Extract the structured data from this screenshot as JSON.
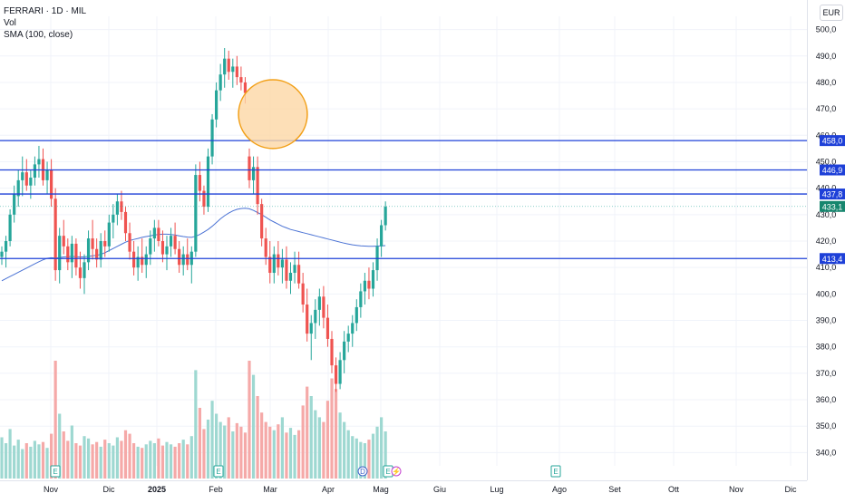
{
  "legend": {
    "symbol": "FERRARI · 1D · MIL",
    "volume": "Vol",
    "sma": "SMA (100, close)"
  },
  "currency": "EUR",
  "colors": {
    "up": "#26a69a",
    "down": "#ef5350",
    "vol_up": "#9ed8d1",
    "vol_down": "#f5a9a8",
    "sma": "#4a72d4",
    "level": "#1e40d8",
    "price_badge": "#16866e",
    "highlight_fill": "#fcd7a5",
    "highlight_stroke": "#f2a018",
    "grid": "#f0f3fa",
    "axis_text": "#131722",
    "event_earnings": "#26a69a",
    "event_dividend": "#3f62c8",
    "event_split": "#c542d0"
  },
  "chart_data": {
    "type": "candlestick",
    "ylim": [
      335,
      505
    ],
    "y_ticks": [
      "500,0",
      "490,0",
      "480,0",
      "470,0",
      "460,0",
      "450,0",
      "440,0",
      "430,0",
      "420,0",
      "410,0",
      "400,0",
      "390,0",
      "380,0",
      "370,0",
      "360,0",
      "350,0",
      "340,0"
    ],
    "y_tick_values": [
      500,
      490,
      480,
      470,
      460,
      450,
      440,
      430,
      420,
      410,
      400,
      390,
      380,
      370,
      360,
      350,
      340
    ],
    "x_labels": [
      "Nov",
      "Dic",
      "2025",
      "Feb",
      "Mar",
      "Apr",
      "Mag",
      "Giu",
      "Lug",
      "Ago",
      "Set",
      "Ott",
      "Nov",
      "Dic"
    ],
    "levels": [
      {
        "value": 458.0,
        "label": "458,0"
      },
      {
        "value": 446.9,
        "label": "446,9"
      },
      {
        "value": 437.8,
        "label": "437,8"
      },
      {
        "value": 413.4,
        "label": "413,4"
      }
    ],
    "last_price": {
      "value": 433.1,
      "label": "433,1"
    },
    "highlight": {
      "type": "circle",
      "price_center": 468,
      "price_radius": 13,
      "date": "mid-Feb 2025"
    },
    "candles": [
      {
        "o": 414,
        "h": 418,
        "l": 411,
        "c": 416
      },
      {
        "o": 416,
        "h": 422,
        "l": 410,
        "c": 420
      },
      {
        "o": 420,
        "h": 432,
        "l": 418,
        "c": 430
      },
      {
        "o": 430,
        "h": 441,
        "l": 427,
        "c": 438
      },
      {
        "o": 437,
        "h": 447,
        "l": 433,
        "c": 443
      },
      {
        "o": 443,
        "h": 452,
        "l": 437,
        "c": 446
      },
      {
        "o": 446,
        "h": 451,
        "l": 439,
        "c": 441
      },
      {
        "o": 441,
        "h": 447,
        "l": 436,
        "c": 444
      },
      {
        "o": 444,
        "h": 452,
        "l": 441,
        "c": 449
      },
      {
        "o": 449,
        "h": 456,
        "l": 444,
        "c": 451
      },
      {
        "o": 451,
        "h": 455,
        "l": 441,
        "c": 443
      },
      {
        "o": 443,
        "h": 450,
        "l": 438,
        "c": 447
      },
      {
        "o": 447,
        "h": 451,
        "l": 433,
        "c": 436
      },
      {
        "o": 436,
        "h": 440,
        "l": 405,
        "c": 409
      },
      {
        "o": 409,
        "h": 425,
        "l": 404,
        "c": 422
      },
      {
        "o": 422,
        "h": 428,
        "l": 415,
        "c": 418
      },
      {
        "o": 418,
        "h": 421,
        "l": 409,
        "c": 412
      },
      {
        "o": 412,
        "h": 422,
        "l": 406,
        "c": 419
      },
      {
        "o": 419,
        "h": 421,
        "l": 407,
        "c": 410
      },
      {
        "o": 410,
        "h": 416,
        "l": 402,
        "c": 406
      },
      {
        "o": 406,
        "h": 415,
        "l": 400,
        "c": 412
      },
      {
        "o": 412,
        "h": 424,
        "l": 409,
        "c": 421
      },
      {
        "o": 421,
        "h": 428,
        "l": 413,
        "c": 417
      },
      {
        "o": 417,
        "h": 421,
        "l": 410,
        "c": 413
      },
      {
        "o": 413,
        "h": 423,
        "l": 410,
        "c": 420
      },
      {
        "o": 420,
        "h": 424,
        "l": 414,
        "c": 418
      },
      {
        "o": 418,
        "h": 430,
        "l": 416,
        "c": 427
      },
      {
        "o": 427,
        "h": 434,
        "l": 421,
        "c": 430
      },
      {
        "o": 430,
        "h": 438,
        "l": 426,
        "c": 435
      },
      {
        "o": 435,
        "h": 439,
        "l": 428,
        "c": 431
      },
      {
        "o": 431,
        "h": 433,
        "l": 420,
        "c": 423
      },
      {
        "o": 423,
        "h": 427,
        "l": 413,
        "c": 416
      },
      {
        "o": 416,
        "h": 420,
        "l": 407,
        "c": 410
      },
      {
        "o": 410,
        "h": 418,
        "l": 405,
        "c": 414
      },
      {
        "o": 414,
        "h": 421,
        "l": 408,
        "c": 411
      },
      {
        "o": 411,
        "h": 418,
        "l": 406,
        "c": 415
      },
      {
        "o": 415,
        "h": 424,
        "l": 411,
        "c": 421
      },
      {
        "o": 421,
        "h": 428,
        "l": 416,
        "c": 425
      },
      {
        "o": 425,
        "h": 428,
        "l": 418,
        "c": 420
      },
      {
        "o": 420,
        "h": 424,
        "l": 412,
        "c": 415
      },
      {
        "o": 415,
        "h": 422,
        "l": 409,
        "c": 418
      },
      {
        "o": 418,
        "h": 425,
        "l": 414,
        "c": 422
      },
      {
        "o": 422,
        "h": 427,
        "l": 415,
        "c": 417
      },
      {
        "o": 417,
        "h": 420,
        "l": 408,
        "c": 411
      },
      {
        "o": 411,
        "h": 418,
        "l": 407,
        "c": 415
      },
      {
        "o": 415,
        "h": 421,
        "l": 409,
        "c": 411
      },
      {
        "o": 411,
        "h": 418,
        "l": 404,
        "c": 416
      },
      {
        "o": 416,
        "h": 449,
        "l": 414,
        "c": 445
      },
      {
        "o": 445,
        "h": 450,
        "l": 435,
        "c": 439
      },
      {
        "o": 439,
        "h": 441,
        "l": 430,
        "c": 433
      },
      {
        "o": 433,
        "h": 455,
        "l": 431,
        "c": 452
      },
      {
        "o": 452,
        "h": 468,
        "l": 449,
        "c": 466
      },
      {
        "o": 466,
        "h": 480,
        "l": 463,
        "c": 477
      },
      {
        "o": 477,
        "h": 487,
        "l": 473,
        "c": 483
      },
      {
        "o": 483,
        "h": 493,
        "l": 478,
        "c": 489
      },
      {
        "o": 489,
        "h": 492,
        "l": 481,
        "c": 484
      },
      {
        "o": 484,
        "h": 489,
        "l": 478,
        "c": 486
      },
      {
        "o": 486,
        "h": 490,
        "l": 479,
        "c": 482
      },
      {
        "o": 482,
        "h": 486,
        "l": 477,
        "c": 480
      },
      {
        "o": 480,
        "h": 482,
        "l": 472,
        "c": 476
      },
      {
        "o": 452,
        "h": 455,
        "l": 440,
        "c": 443
      },
      {
        "o": 443,
        "h": 452,
        "l": 438,
        "c": 448
      },
      {
        "o": 448,
        "h": 452,
        "l": 430,
        "c": 434
      },
      {
        "o": 434,
        "h": 436,
        "l": 418,
        "c": 421
      },
      {
        "o": 421,
        "h": 425,
        "l": 411,
        "c": 414
      },
      {
        "o": 414,
        "h": 420,
        "l": 404,
        "c": 408
      },
      {
        "o": 408,
        "h": 418,
        "l": 404,
        "c": 415
      },
      {
        "o": 415,
        "h": 420,
        "l": 407,
        "c": 410
      },
      {
        "o": 410,
        "h": 417,
        "l": 404,
        "c": 413
      },
      {
        "o": 413,
        "h": 418,
        "l": 402,
        "c": 405
      },
      {
        "o": 405,
        "h": 412,
        "l": 400,
        "c": 408
      },
      {
        "o": 408,
        "h": 416,
        "l": 404,
        "c": 411
      },
      {
        "o": 411,
        "h": 416,
        "l": 402,
        "c": 404
      },
      {
        "o": 404,
        "h": 408,
        "l": 393,
        "c": 396
      },
      {
        "o": 396,
        "h": 402,
        "l": 382,
        "c": 385
      },
      {
        "o": 385,
        "h": 392,
        "l": 375,
        "c": 389
      },
      {
        "o": 389,
        "h": 398,
        "l": 383,
        "c": 394
      },
      {
        "o": 394,
        "h": 402,
        "l": 388,
        "c": 399
      },
      {
        "o": 399,
        "h": 403,
        "l": 387,
        "c": 391
      },
      {
        "o": 391,
        "h": 396,
        "l": 380,
        "c": 383
      },
      {
        "o": 383,
        "h": 386,
        "l": 370,
        "c": 373
      },
      {
        "o": 373,
        "h": 376,
        "l": 363,
        "c": 366
      },
      {
        "o": 366,
        "h": 378,
        "l": 364,
        "c": 375
      },
      {
        "o": 375,
        "h": 386,
        "l": 370,
        "c": 382
      },
      {
        "o": 382,
        "h": 388,
        "l": 378,
        "c": 385
      },
      {
        "o": 385,
        "h": 392,
        "l": 380,
        "c": 389
      },
      {
        "o": 389,
        "h": 398,
        "l": 386,
        "c": 395
      },
      {
        "o": 395,
        "h": 404,
        "l": 391,
        "c": 401
      },
      {
        "o": 401,
        "h": 408,
        "l": 396,
        "c": 405
      },
      {
        "o": 405,
        "h": 410,
        "l": 398,
        "c": 402
      },
      {
        "o": 402,
        "h": 412,
        "l": 399,
        "c": 409
      },
      {
        "o": 409,
        "h": 421,
        "l": 405,
        "c": 418
      },
      {
        "o": 418,
        "h": 428,
        "l": 414,
        "c": 426
      },
      {
        "o": 426,
        "h": 435,
        "l": 424,
        "c": 433
      }
    ],
    "volumes": [
      0.35,
      0.3,
      0.42,
      0.28,
      0.33,
      0.25,
      0.3,
      0.27,
      0.32,
      0.29,
      0.31,
      0.26,
      0.38,
      1.0,
      0.55,
      0.4,
      0.32,
      0.45,
      0.3,
      0.28,
      0.36,
      0.34,
      0.29,
      0.31,
      0.27,
      0.33,
      0.3,
      0.28,
      0.35,
      0.32,
      0.41,
      0.38,
      0.3,
      0.27,
      0.26,
      0.29,
      0.32,
      0.3,
      0.34,
      0.28,
      0.31,
      0.29,
      0.27,
      0.3,
      0.33,
      0.29,
      0.36,
      0.92,
      0.6,
      0.42,
      0.5,
      0.66,
      0.55,
      0.48,
      0.45,
      0.52,
      0.4,
      0.47,
      0.44,
      0.39,
      1.0,
      0.88,
      0.7,
      0.56,
      0.48,
      0.44,
      0.41,
      0.46,
      0.52,
      0.39,
      0.43,
      0.37,
      0.41,
      0.62,
      0.78,
      0.7,
      0.58,
      0.52,
      0.48,
      0.66,
      0.85,
      0.76,
      0.56,
      0.48,
      0.41,
      0.36,
      0.34,
      0.31,
      0.3,
      0.33,
      0.38,
      0.44,
      0.52,
      0.4
    ],
    "sma": [
      405,
      405.8,
      406.6,
      407.4,
      408.2,
      409,
      409.8,
      410.6,
      411.4,
      412.2,
      412.9,
      413.5,
      413.7,
      413.6,
      413.8,
      414.0,
      414.1,
      414.2,
      414.1,
      414.0,
      414.0,
      414.2,
      414.4,
      414.6,
      415.0,
      415.6,
      416.4,
      417.2,
      418.0,
      418.8,
      419.6,
      420.2,
      420.6,
      421.0,
      421.4,
      421.7,
      422.0,
      422.3,
      422.5,
      422.6,
      422.6,
      422.5,
      422.3,
      422.0,
      421.7,
      421.5,
      421.4,
      421.8,
      422.5,
      423.4,
      424.4,
      425.6,
      427.0,
      428.4,
      429.6,
      430.6,
      431.4,
      432.0,
      432.3,
      432.4,
      432.2,
      431.6,
      430.8,
      430.0,
      429.0,
      428.0,
      427.2,
      426.4,
      425.6,
      425.0,
      424.4,
      424.0,
      423.6,
      423.2,
      422.8,
      422.4,
      422.0,
      421.6,
      421.2,
      420.8,
      420.4,
      420.0,
      419.6,
      419.2,
      418.9,
      418.6,
      418.4,
      418.2,
      418.1,
      418.0,
      418.0,
      418.1,
      418.2,
      418.3
    ],
    "events": [
      {
        "type": "earnings",
        "label": "E",
        "idx": 8
      },
      {
        "type": "earnings",
        "label": "E",
        "idx": 68
      },
      {
        "type": "dividend",
        "label": "D",
        "idx": 114
      },
      {
        "type": "earnings",
        "label": "E",
        "idx": 122
      },
      {
        "type": "split",
        "label": "⚡",
        "idx": 125
      },
      {
        "type": "earnings",
        "label": "E",
        "idx": 175
      }
    ]
  }
}
